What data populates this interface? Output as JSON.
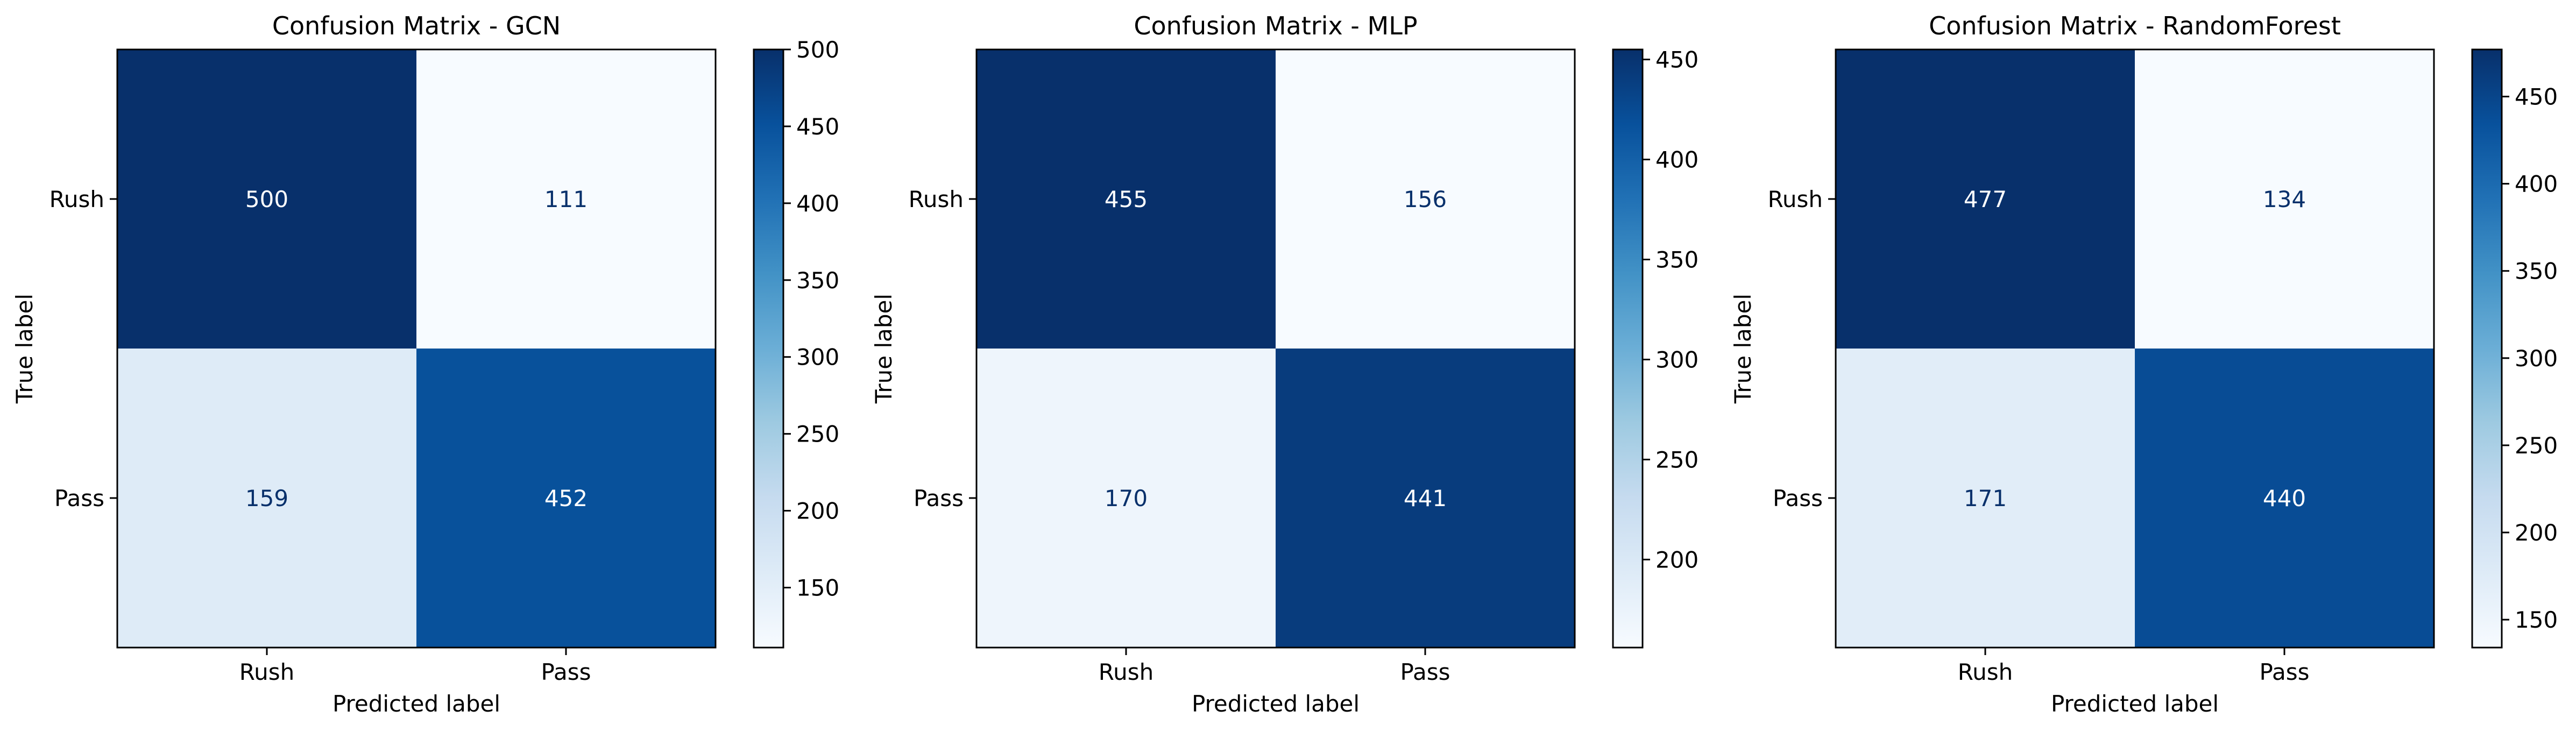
{
  "figure": {
    "cmap": [
      "#f7fbff",
      "#deebf7",
      "#c6dbef",
      "#9ecae1",
      "#6baed6",
      "#4292c6",
      "#2171b5",
      "#08519c",
      "#08306b"
    ],
    "text_dark": "#08306b",
    "text_light": "#ffffff"
  },
  "chart_data": [
    {
      "type": "heatmap",
      "title": "Confusion Matrix - GCN",
      "xlabel": "Predicted label",
      "ylabel": "True label",
      "x_categories": [
        "Rush",
        "Pass"
      ],
      "y_categories": [
        "Rush",
        "Pass"
      ],
      "values": [
        [
          500,
          111
        ],
        [
          159,
          452
        ]
      ],
      "colorbar": {
        "min": 111,
        "max": 500,
        "ticks": [
          150,
          200,
          250,
          300,
          350,
          400,
          450,
          500
        ]
      },
      "colormap": "Blues",
      "grid": false
    },
    {
      "type": "heatmap",
      "title": "Confusion Matrix - MLP",
      "xlabel": "Predicted label",
      "ylabel": "True label",
      "x_categories": [
        "Rush",
        "Pass"
      ],
      "y_categories": [
        "Rush",
        "Pass"
      ],
      "values": [
        [
          455,
          156
        ],
        [
          170,
          441
        ]
      ],
      "colorbar": {
        "min": 156,
        "max": 455,
        "ticks": [
          200,
          250,
          300,
          350,
          400,
          450
        ]
      },
      "colormap": "Blues",
      "grid": false
    },
    {
      "type": "heatmap",
      "title": "Confusion Matrix - RandomForest",
      "xlabel": "Predicted label",
      "ylabel": "True label",
      "x_categories": [
        "Rush",
        "Pass"
      ],
      "y_categories": [
        "Rush",
        "Pass"
      ],
      "values": [
        [
          477,
          134
        ],
        [
          171,
          440
        ]
      ],
      "colorbar": {
        "min": 134,
        "max": 477,
        "ticks": [
          150,
          200,
          250,
          300,
          350,
          400,
          450
        ]
      },
      "colormap": "Blues",
      "grid": false
    }
  ]
}
